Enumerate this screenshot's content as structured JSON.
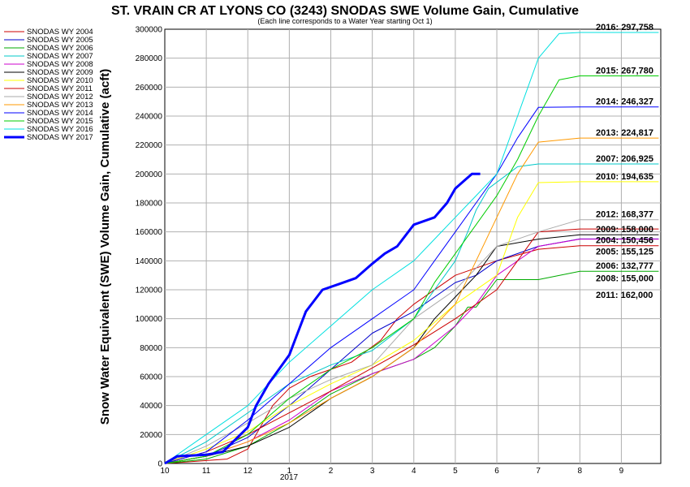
{
  "chart_data": {
    "type": "line",
    "title": "ST. VRAIN CR AT LYONS CO (3243) SNODAS SWE Volume Gain, Cumulative",
    "subtitle": "(Each line corresponds to a Water Year starting Oct 1)",
    "ylabel": "Snow Water Equivalent (SWE) Volume Gain, Cumulative (acft)",
    "xlabel": "",
    "x_unit": "month of water year",
    "ylim": [
      0,
      300000
    ],
    "y_ticks": [
      0,
      20000,
      40000,
      60000,
      80000,
      100000,
      120000,
      140000,
      160000,
      180000,
      200000,
      220000,
      240000,
      260000,
      280000,
      300000
    ],
    "y_tick_labels": [
      "0",
      "20000",
      "40000",
      "60000",
      "80000",
      "100000",
      "120000",
      "140000",
      "160000",
      "180000",
      "200000",
      "220000",
      "240000",
      "260000",
      "280000",
      "300000"
    ],
    "xlim": [
      0,
      11.95
    ],
    "x_ticks": [
      0,
      1,
      2,
      3,
      4,
      5,
      6,
      7,
      8,
      9,
      10,
      11
    ],
    "x_tick_labels": [
      "10",
      "11",
      "12",
      "1",
      "2",
      "3",
      "4",
      "5",
      "6",
      "7",
      "8",
      "9"
    ],
    "x_year_label": "2017",
    "grid": true,
    "legend_position": "left, outside plot",
    "series": [
      {
        "name": "SNODAS WY 2004",
        "color": "#cc0000",
        "width": 1,
        "x": [
          0,
          1.5,
          2.0,
          2.3,
          2.6,
          3.0,
          3.5,
          4.0,
          4.5,
          5.2,
          5.6,
          6.0,
          7.0,
          8.0,
          9.0,
          10.0,
          11.0,
          11.9
        ],
        "y": [
          0,
          3000,
          10000,
          25000,
          40000,
          52000,
          60000,
          65000,
          70000,
          85000,
          100000,
          110000,
          130000,
          140000,
          148000,
          150456,
          150456,
          150456
        ],
        "end_label": "2004: 150,456"
      },
      {
        "name": "SNODAS WY 2005",
        "color": "#0000cc",
        "width": 1,
        "x": [
          0,
          1.0,
          2.0,
          3.0,
          4.0,
          5.0,
          6.0,
          7.0,
          7.5,
          8.0,
          9.0,
          10.0,
          11.0,
          11.9
        ],
        "y": [
          0,
          5000,
          18000,
          40000,
          65000,
          90000,
          105000,
          125000,
          130000,
          140000,
          150000,
          155125,
          155125,
          155125
        ],
        "end_label": "2005: 155,125"
      },
      {
        "name": "SNODAS WY 2006",
        "color": "#00aa00",
        "width": 1,
        "x": [
          0,
          1.0,
          2.0,
          3.0,
          4.0,
          5.0,
          6.0,
          6.5,
          7.0,
          7.3,
          7.5,
          8.0,
          9.0,
          10.0,
          11.0,
          11.9
        ],
        "y": [
          0,
          3000,
          12000,
          28000,
          48000,
          62000,
          72000,
          80000,
          95000,
          108000,
          108000,
          127000,
          127000,
          132777,
          132777,
          132777
        ],
        "end_label": "2006: 132,777"
      },
      {
        "name": "SNODAS WY 2007",
        "color": "#00c8c8",
        "width": 1,
        "x": [
          0,
          1.0,
          2.0,
          3.0,
          4.0,
          5.0,
          6.0,
          6.5,
          7.0,
          7.3,
          7.5,
          7.8,
          8.5,
          9.0,
          10.0,
          11.0,
          11.9
        ],
        "y": [
          0,
          15000,
          35000,
          55000,
          68000,
          78000,
          100000,
          120000,
          140000,
          160000,
          175000,
          190000,
          205000,
          206925,
          206925,
          206925,
          206925
        ],
        "end_label": "2007: 206,925"
      },
      {
        "name": "SNODAS WY 2008",
        "color": "#cc00cc",
        "width": 1,
        "x": [
          0,
          1.0,
          2.0,
          3.0,
          4.0,
          5.0,
          6.0,
          7.0,
          7.5,
          8.0,
          9.0,
          10.0,
          11.0,
          11.9
        ],
        "y": [
          0,
          5000,
          15000,
          30000,
          50000,
          62000,
          72000,
          95000,
          110000,
          130000,
          150000,
          155000,
          155000,
          155000
        ],
        "end_label": "2008: 155,000"
      },
      {
        "name": "SNODAS WY 2009",
        "color": "#000000",
        "width": 1,
        "x": [
          0,
          1.0,
          2.0,
          3.0,
          4.0,
          5.0,
          6.0,
          6.5,
          7.0,
          7.5,
          8.0,
          9.0,
          10.0,
          11.0,
          11.9
        ],
        "y": [
          0,
          5000,
          12000,
          25000,
          45000,
          60000,
          80000,
          100000,
          115000,
          130000,
          150000,
          155000,
          158000,
          158000,
          158000
        ],
        "end_label": "2009: 158,000"
      },
      {
        "name": "SNODAS WY 2010",
        "color": "#ffff00",
        "width": 1,
        "x": [
          0,
          1.0,
          2.0,
          3.0,
          4.0,
          5.0,
          6.0,
          7.0,
          8.0,
          8.5,
          9.0,
          10.0,
          11.0,
          11.9
        ],
        "y": [
          0,
          10000,
          22000,
          40000,
          55000,
          68000,
          85000,
          110000,
          130000,
          170000,
          194000,
          194635,
          194635,
          194635
        ],
        "end_label": "2010: 194,635"
      },
      {
        "name": "SNODAS WY 2011",
        "color": "#cc0000",
        "width": 1,
        "x": [
          0,
          1.0,
          2.0,
          3.0,
          4.0,
          5.0,
          6.0,
          7.0,
          8.0,
          8.5,
          9.0,
          10.0,
          11.0,
          11.9
        ],
        "y": [
          0,
          8000,
          20000,
          35000,
          50000,
          66000,
          82000,
          100000,
          120000,
          140000,
          160000,
          162000,
          162000,
          162000
        ],
        "end_label": "2011: 162,000"
      },
      {
        "name": "SNODAS WY 2012",
        "color": "#aaaaaa",
        "width": 1,
        "x": [
          0,
          1.0,
          2.0,
          3.0,
          4.0,
          5.0,
          6.0,
          6.5,
          7.0,
          7.5,
          8.0,
          9.0,
          10.0,
          11.0,
          11.9
        ],
        "y": [
          0,
          12000,
          28000,
          45000,
          58000,
          68000,
          100000,
          110000,
          120000,
          135000,
          150000,
          160000,
          168377,
          168377,
          168377
        ],
        "end_label": "2012: 168,377"
      },
      {
        "name": "SNODAS WY 2013",
        "color": "#ff9900",
        "width": 1,
        "x": [
          0,
          1.0,
          2.0,
          3.0,
          4.0,
          5.0,
          6.0,
          7.0,
          7.5,
          8.0,
          8.5,
          9.0,
          10.0,
          11.0,
          11.9
        ],
        "y": [
          0,
          5000,
          15000,
          28000,
          45000,
          60000,
          80000,
          110000,
          140000,
          170000,
          200000,
          222000,
          224817,
          224817,
          224817
        ],
        "end_label": "2013: 224,817"
      },
      {
        "name": "SNODAS WY 2014",
        "color": "#0000ff",
        "width": 1,
        "x": [
          0,
          1.0,
          2.0,
          3.0,
          4.0,
          5.0,
          6.0,
          6.5,
          7.0,
          7.5,
          8.0,
          8.5,
          9.0,
          10.0,
          11.0,
          11.9
        ],
        "y": [
          0,
          8000,
          30000,
          55000,
          80000,
          100000,
          120000,
          140000,
          160000,
          180000,
          200000,
          225000,
          246000,
          246327,
          246327,
          246327
        ],
        "end_label": "2014: 246,327"
      },
      {
        "name": "SNODAS WY 2015",
        "color": "#00cc00",
        "width": 1,
        "x": [
          0,
          1.0,
          2.0,
          3.0,
          4.0,
          5.0,
          6.0,
          6.5,
          7.0,
          7.5,
          8.0,
          8.5,
          9.0,
          9.5,
          10.0,
          11.0,
          11.9
        ],
        "y": [
          0,
          5000,
          20000,
          45000,
          65000,
          80000,
          100000,
          125000,
          145000,
          165000,
          185000,
          210000,
          240000,
          265000,
          267780,
          267780,
          267780
        ],
        "end_label": "2015: 267,780"
      },
      {
        "name": "SNODAS WY 2016",
        "color": "#00e0e0",
        "width": 1,
        "x": [
          0,
          1.0,
          2.0,
          3.0,
          4.0,
          5.0,
          6.0,
          6.5,
          7.0,
          7.5,
          8.0,
          8.5,
          9.0,
          9.5,
          10.0,
          11.0,
          11.9
        ],
        "y": [
          0,
          20000,
          40000,
          70000,
          95000,
          120000,
          140000,
          155000,
          170000,
          185000,
          200000,
          240000,
          280000,
          297000,
          297758,
          297758,
          297758
        ],
        "end_label": "2016: 297,758"
      },
      {
        "name": "SNODAS WY 2017",
        "color": "#0000ff",
        "width": 3,
        "x": [
          0,
          0.3,
          1.0,
          1.4,
          2.0,
          2.2,
          2.5,
          3.0,
          3.2,
          3.4,
          3.8,
          4.2,
          4.6,
          5.0,
          5.3,
          5.6,
          6.0,
          6.5,
          6.8,
          7.0,
          7.2,
          7.4,
          7.6
        ],
        "y": [
          0,
          5000,
          6000,
          8000,
          25000,
          40000,
          55000,
          75000,
          90000,
          105000,
          120000,
          124000,
          128000,
          138000,
          145000,
          150000,
          165000,
          170000,
          180000,
          190000,
          195000,
          200000,
          200000
        ]
      }
    ]
  }
}
